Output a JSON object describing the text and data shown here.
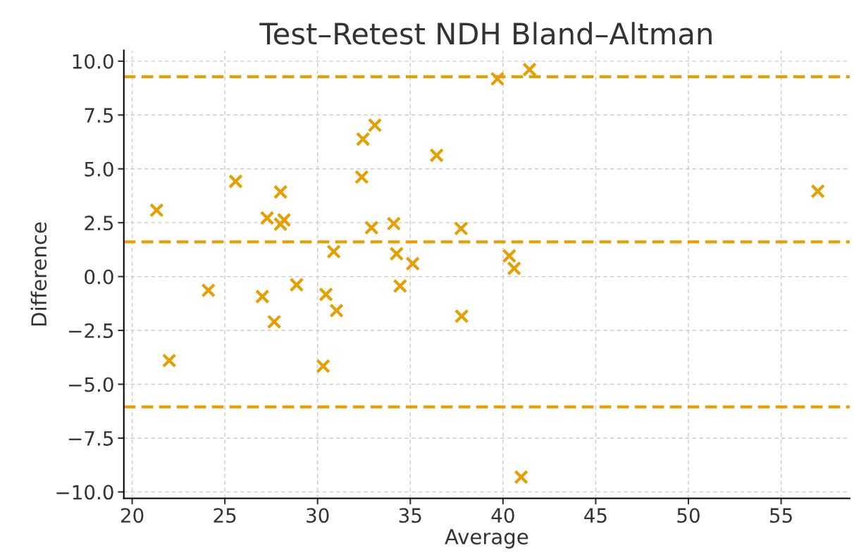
{
  "chart_data": {
    "type": "scatter",
    "title": "Test–Retest NDH Bland–Altman",
    "xlabel": "Average",
    "ylabel": "Difference",
    "series": [
      {
        "color": "#e69f00",
        "x": [
          21.32,
          22.0,
          24.11,
          25.58,
          27.02,
          27.28,
          27.66,
          28.0,
          28.0,
          28.19,
          28.87,
          30.3,
          30.45,
          30.87,
          31.02,
          32.38,
          32.45,
          32.91,
          33.09,
          34.11,
          34.26,
          34.45,
          35.13,
          36.42,
          37.74,
          37.77,
          39.7,
          40.34,
          40.6,
          40.98,
          41.43,
          56.98
        ],
        "values": [
          3.08,
          -3.9,
          -0.64,
          4.42,
          -0.93,
          2.72,
          -2.1,
          3.93,
          2.43,
          2.63,
          -0.38,
          -4.16,
          -0.83,
          1.16,
          -1.58,
          4.62,
          6.38,
          2.27,
          7.03,
          2.46,
          1.06,
          -0.44,
          0.6,
          5.63,
          2.23,
          -1.84,
          9.18,
          0.96,
          0.38,
          -9.31,
          9.61,
          3.96
        ]
      }
    ],
    "marker": "cross",
    "xlim": [
      19.55,
      58.7
    ],
    "xticks": [
      20,
      25,
      30,
      35,
      40,
      45,
      50,
      55
    ],
    "ylim": [
      -10.3,
      10.5
    ],
    "yticks": [
      {
        "value": -10,
        "label": "−10.0"
      },
      {
        "value": -7.5,
        "label": "−7.5"
      },
      {
        "value": -5,
        "label": "−5.0"
      },
      {
        "value": -2.5,
        "label": "−2.5"
      },
      {
        "value": 0,
        "label": "0.0"
      },
      {
        "value": 2.5,
        "label": "2.5"
      },
      {
        "value": 5,
        "label": "5.0"
      },
      {
        "value": 7.5,
        "label": "7.5"
      },
      {
        "value": 10,
        "label": "10.0"
      }
    ],
    "ref_lines": [
      {
        "axis": "y",
        "value": 9.28,
        "color": "#e69f00",
        "line_style": "dashed"
      },
      {
        "axis": "y",
        "value": 1.61,
        "color": "#e69f00",
        "line_style": "dashed"
      },
      {
        "axis": "y",
        "value": -6.05,
        "color": "#e69f00",
        "line_style": "dashed"
      }
    ],
    "grid": true
  }
}
